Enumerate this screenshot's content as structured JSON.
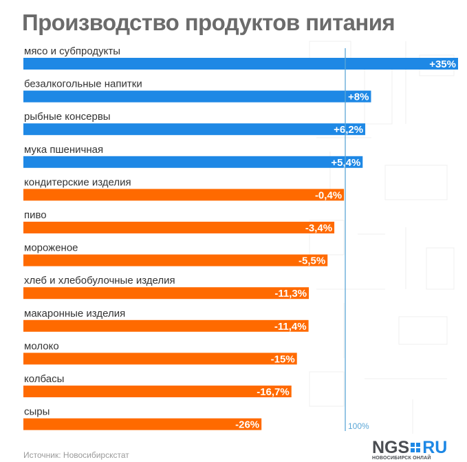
{
  "title": "Производство продуктов питания",
  "source": "Источник: Новосибирскстат",
  "reference_label": "100%",
  "logo": {
    "ngs": "NGS",
    "ru": "RU",
    "subtitle": "НОВОСИБИРСК ОНЛАЙ"
  },
  "colors": {
    "positive": "#1e88e5",
    "negative": "#ff6a00",
    "reference_line": "#5aa6d6",
    "title": "#6b6b6b"
  },
  "chart_data": {
    "type": "bar",
    "orientation": "horizontal",
    "title": "Производство продуктов питания",
    "categories": [
      "мясо и субпродукты",
      "безалкогольные напитки",
      "рыбные консервы",
      "мука пшеничная",
      "кондитерские изделия",
      "пиво",
      "мороженое",
      "хлеб и хлебобулочные изделия",
      "макаронные изделия",
      "молоко",
      "колбасы",
      "сыры"
    ],
    "values": [
      35,
      8,
      6.2,
      5.4,
      -0.4,
      -3.4,
      -5.5,
      -11.3,
      -11.4,
      -15,
      -16.7,
      -26
    ],
    "labels": [
      "+35%",
      "+8%",
      "+6,2%",
      "+5,4%",
      "-0,4%",
      "-3,4%",
      "-5,5%",
      "-11,3%",
      "-11,4%",
      "-15%",
      "-16,7%",
      "-26%"
    ],
    "reference_line": 0,
    "grid": false,
    "legend": "none"
  }
}
